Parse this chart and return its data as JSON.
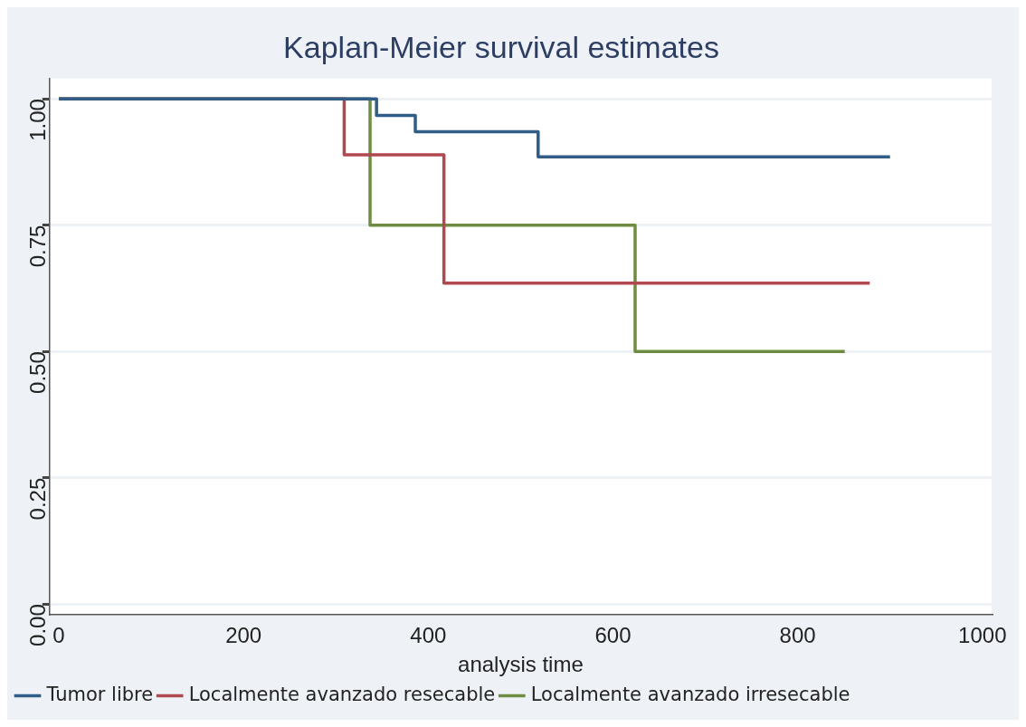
{
  "chart_data": {
    "type": "step",
    "title": "Kaplan-Meier survival estimates",
    "xlabel": "analysis time",
    "xlim": [
      -10,
      1010
    ],
    "xticks": [
      0,
      200,
      400,
      600,
      800,
      1000
    ],
    "ylim": [
      -0.02,
      1.04
    ],
    "yticks": [
      {
        "value": 0,
        "label": "0.00"
      },
      {
        "value": 0.25,
        "label": "0.25"
      },
      {
        "value": 0.5,
        "label": "0.50"
      },
      {
        "value": 0.75,
        "label": "0.75"
      },
      {
        "value": 1,
        "label": "1.00"
      }
    ],
    "grid": "y",
    "legend": "bottom",
    "line_style": "solid",
    "marker": "none",
    "series": [
      {
        "name": "Tumor libre",
        "color": "#2f5d87",
        "x": [
          0,
          344,
          386,
          519,
          900
        ],
        "values": [
          1,
          0.967,
          0.935,
          0.885,
          0.885
        ]
      },
      {
        "name": "Localmente avanzado resecable",
        "color": "#b04850",
        "x": [
          0,
          309,
          417,
          878
        ],
        "values": [
          1,
          0.889,
          0.635,
          0.635
        ]
      },
      {
        "name": "Localmente avanzado irresecable",
        "color": "#6f8c43",
        "x": [
          0,
          337,
          624,
          851
        ],
        "values": [
          1,
          0.75,
          0.5,
          0.5
        ]
      }
    ]
  }
}
